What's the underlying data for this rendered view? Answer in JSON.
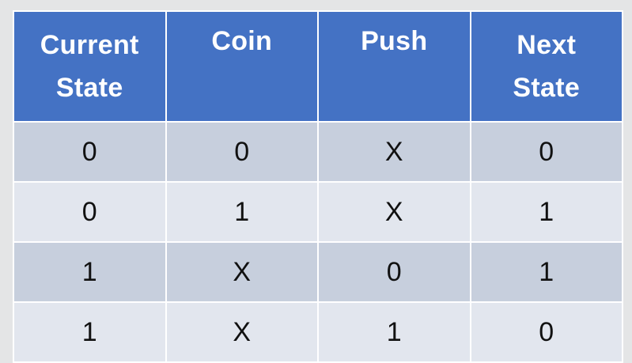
{
  "table": {
    "headers": [
      {
        "line1": "Current",
        "line2": "State"
      },
      {
        "line1": "Coin",
        "line2": ""
      },
      {
        "line1": "Push",
        "line2": ""
      },
      {
        "line1": "Next",
        "line2": "State"
      }
    ],
    "rows": [
      [
        "0",
        "0",
        "X",
        "0"
      ],
      [
        "0",
        "1",
        "X",
        "1"
      ],
      [
        "1",
        "X",
        "0",
        "1"
      ],
      [
        "1",
        "X",
        "1",
        "0"
      ]
    ],
    "colors": {
      "header_bg": "#4472c4",
      "header_text": "#ffffff",
      "row_band_dark": "#c7cfdd",
      "row_band_light": "#e2e6ee",
      "border": "#ffffff",
      "page_bg": "#e4e5e6"
    }
  }
}
